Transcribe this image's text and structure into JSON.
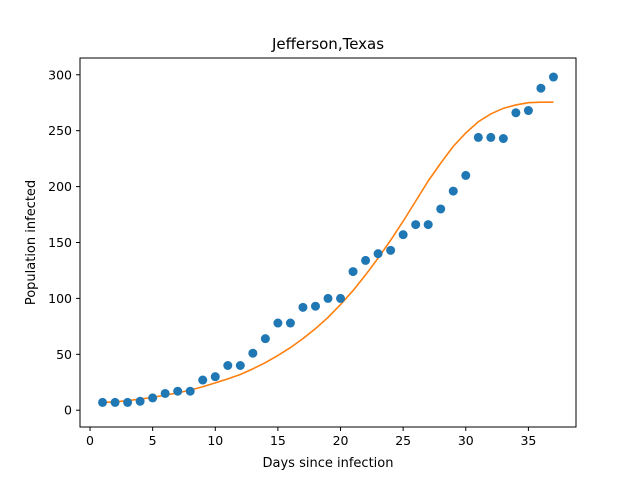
{
  "chart_data": {
    "type": "scatter",
    "title": "Jefferson,Texas",
    "xlabel": "Days since infection",
    "ylabel": "Population infected",
    "xlim": [
      -0.8,
      38.8
    ],
    "ylim": [
      -15,
      315
    ],
    "xticks": [
      0,
      5,
      10,
      15,
      20,
      25,
      30,
      35
    ],
    "yticks": [
      0,
      50,
      100,
      150,
      200,
      250,
      300
    ],
    "grid": false,
    "legend": "none",
    "series": [
      {
        "kind": "scatter",
        "color": "#1f77b4",
        "x": [
          1,
          2,
          3,
          4,
          5,
          6,
          7,
          8,
          9,
          10,
          11,
          12,
          13,
          14,
          15,
          16,
          17,
          18,
          19,
          20,
          21,
          22,
          23,
          24,
          25,
          26,
          27,
          28,
          29,
          30,
          31,
          32,
          33,
          34,
          35,
          36,
          37
        ],
        "y": [
          7,
          7,
          7,
          8,
          11,
          15,
          17,
          17,
          27,
          30,
          40,
          40,
          51,
          64,
          78,
          78,
          92,
          93,
          100,
          100,
          124,
          134,
          140,
          143,
          157,
          166,
          166,
          180,
          196,
          210,
          244,
          244,
          243,
          266,
          268,
          288,
          298
        ]
      },
      {
        "kind": "line",
        "color": "#ff7f0e",
        "x": [
          1,
          2,
          3,
          4,
          5,
          6,
          7,
          8,
          9,
          10,
          11,
          12,
          13,
          14,
          15,
          16,
          17,
          18,
          19,
          20,
          21,
          22,
          23,
          24,
          25,
          26,
          27,
          28,
          29,
          30,
          31,
          32,
          33,
          34,
          35,
          36,
          37
        ],
        "y": [
          7,
          7.5,
          8.5,
          10,
          11.5,
          13.5,
          15.5,
          18,
          21,
          24.5,
          28,
          32,
          37,
          42.5,
          49,
          56,
          64,
          73,
          83,
          94.5,
          107,
          121,
          136,
          152,
          169,
          187,
          205,
          221,
          236,
          248,
          258,
          265,
          270,
          273,
          275,
          275.5,
          275.5
        ]
      }
    ]
  }
}
